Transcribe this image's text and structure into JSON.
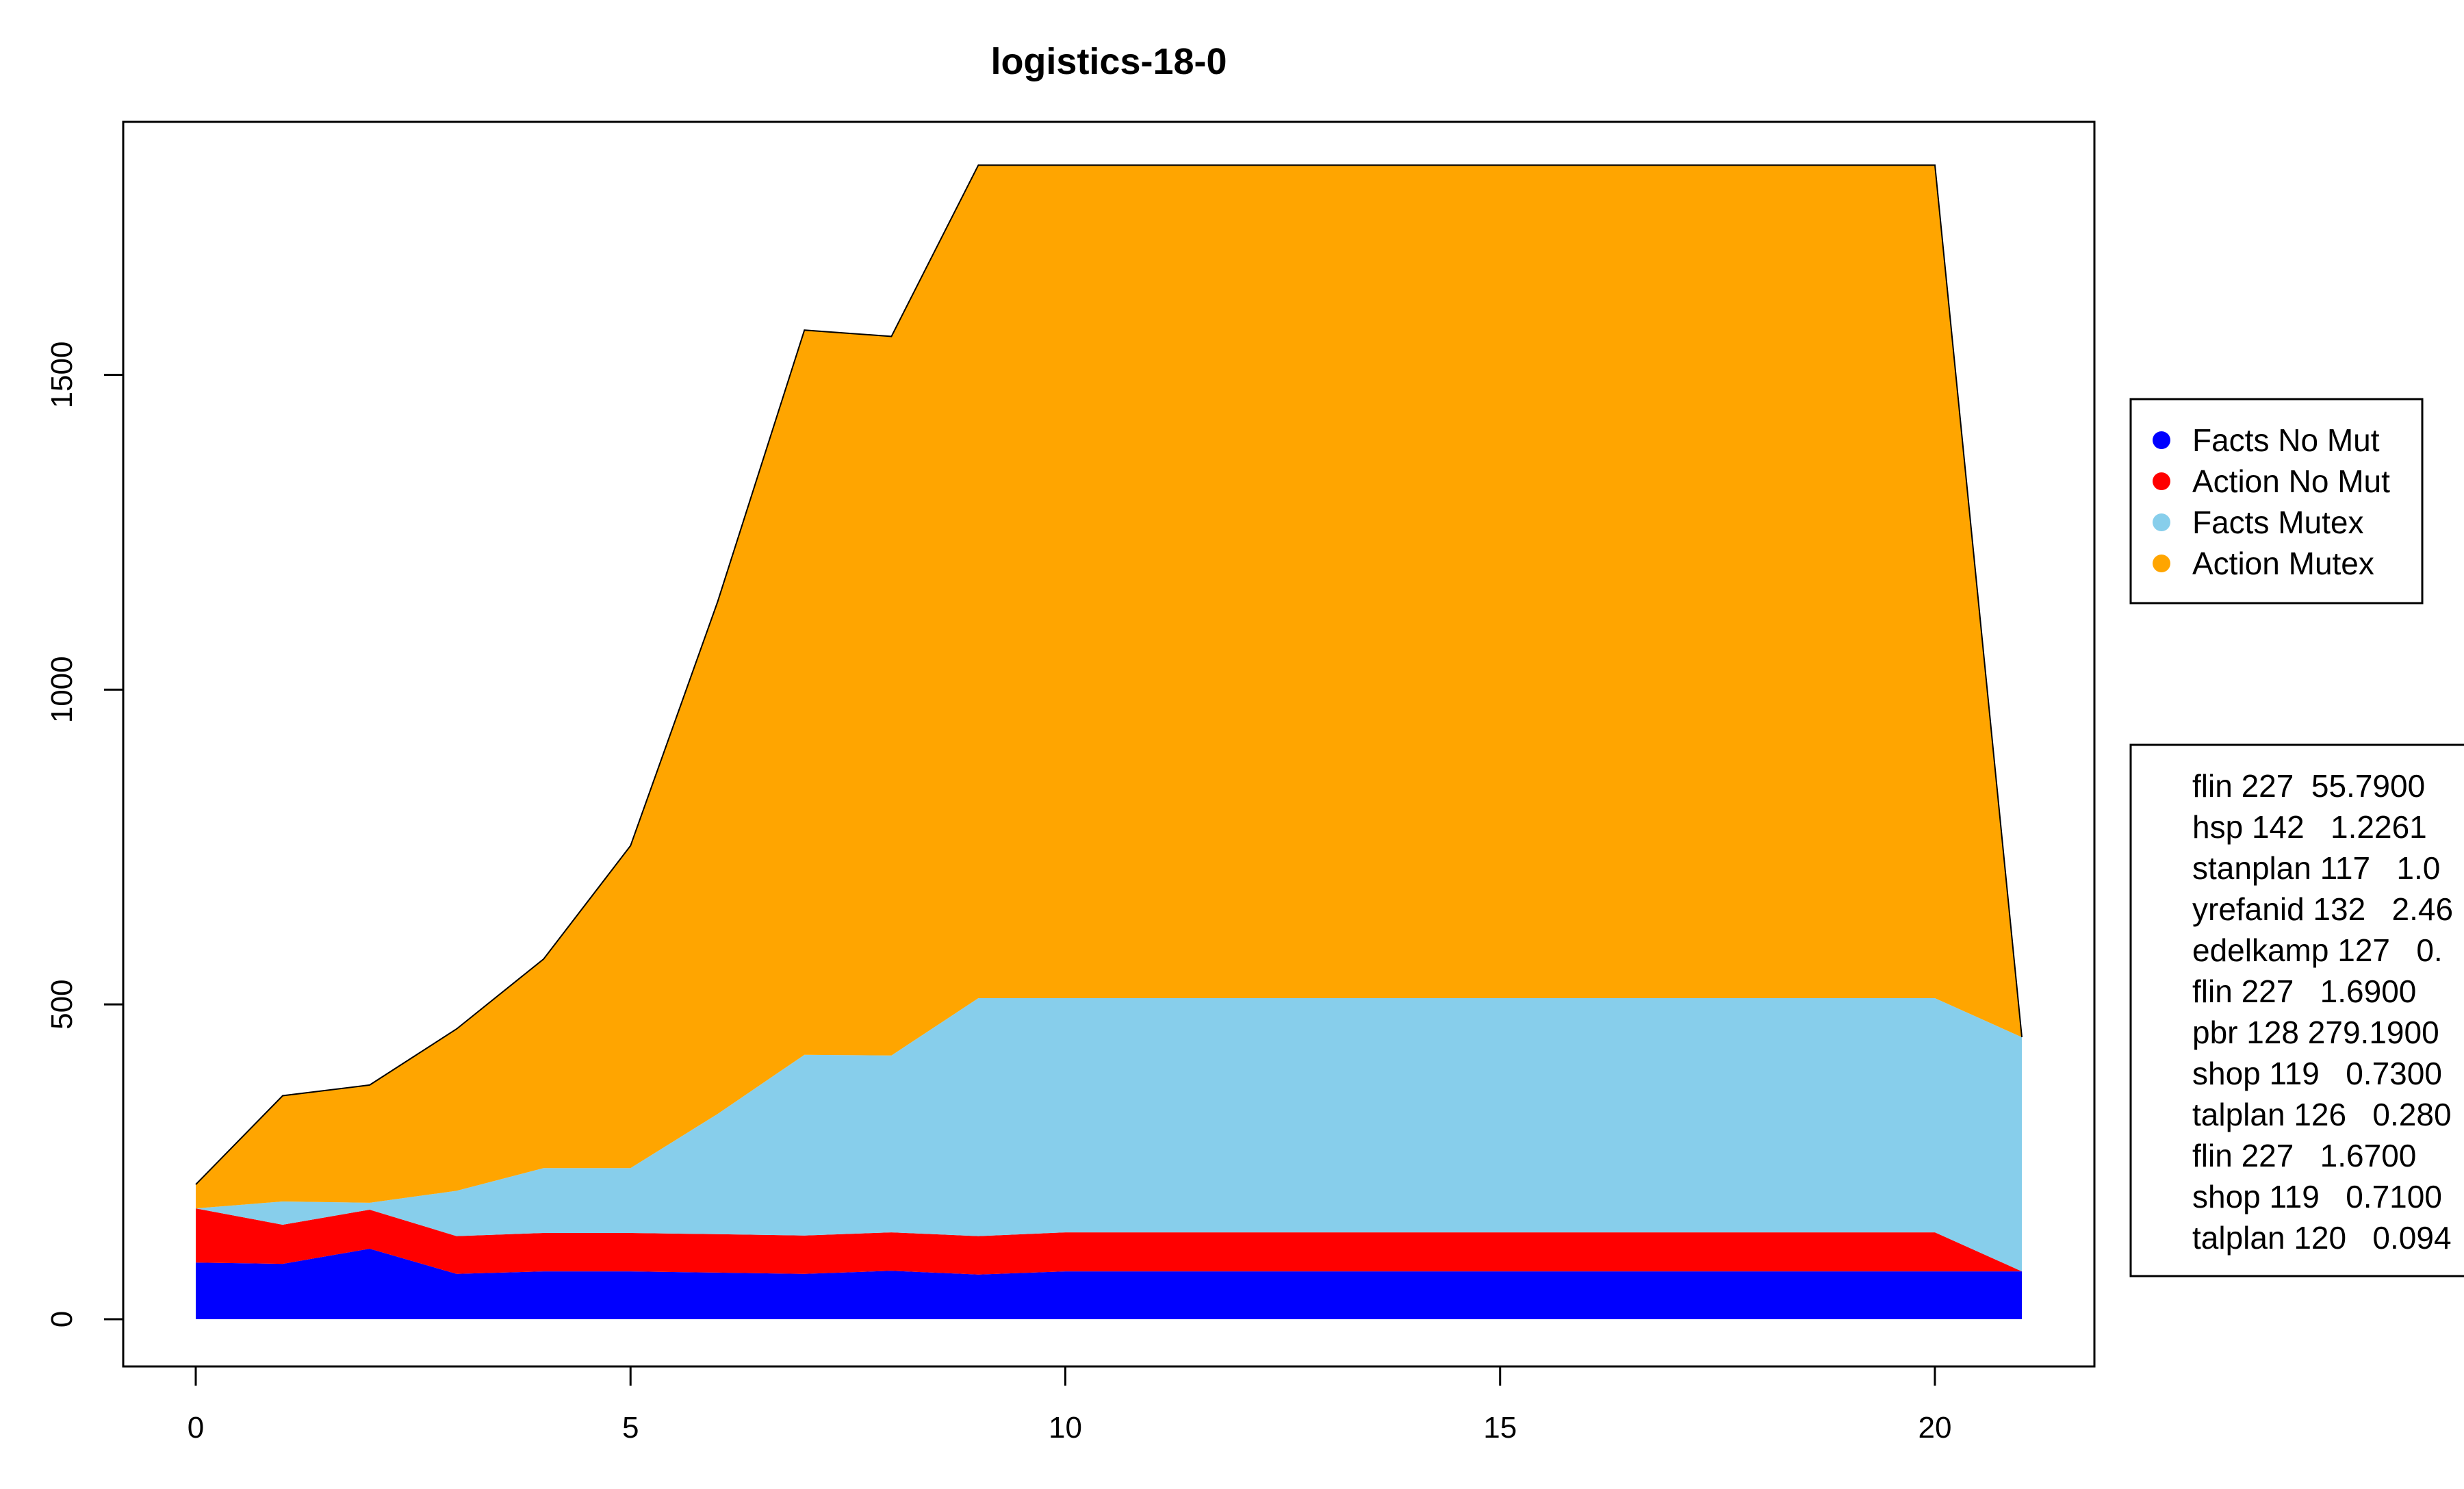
{
  "chart_data": {
    "type": "area",
    "stacked": true,
    "title": "logistics-18-0",
    "xlabel": "",
    "ylabel": "",
    "xlim": [
      0,
      21
    ],
    "ylim": [
      0,
      1830
    ],
    "x_ticks": [
      0,
      5,
      10,
      15,
      20
    ],
    "y_ticks": [
      0,
      500,
      1000,
      1500
    ],
    "x": [
      0,
      1,
      2,
      3,
      4,
      5,
      6,
      7,
      8,
      9,
      10,
      11,
      12,
      13,
      14,
      15,
      16,
      17,
      18,
      19,
      20,
      21
    ],
    "series": [
      {
        "name": "Facts No Mut",
        "color": "#0000FF",
        "values": [
          90,
          88,
          112,
          72,
          76,
          76,
          74,
          72,
          77,
          71,
          76,
          76,
          76,
          76,
          76,
          76,
          76,
          76,
          76,
          76,
          76,
          76
        ]
      },
      {
        "name": "Action No Mut",
        "color": "#FF0000",
        "values": [
          86,
          62,
          62,
          60,
          61,
          61,
          61,
          61,
          61,
          61,
          62,
          62,
          62,
          62,
          62,
          62,
          62,
          62,
          62,
          62,
          62,
          0
        ]
      },
      {
        "name": "Facts Mutex",
        "color": "#87CEEB",
        "values": [
          0,
          37,
          11,
          72,
          103,
          103,
          191,
          287,
          281,
          378,
          372,
          372,
          372,
          372,
          372,
          372,
          372,
          372,
          372,
          372,
          372,
          372
        ]
      },
      {
        "name": "Action Mutex",
        "color": "#FFA500",
        "values": [
          38,
          168,
          187,
          257,
          332,
          512,
          813,
          1151,
          1142,
          1323,
          1323,
          1323,
          1323,
          1323,
          1323,
          1323,
          1323,
          1323,
          1323,
          1323,
          1323,
          0
        ]
      }
    ],
    "legend": {
      "position": "right",
      "entries": [
        "Facts No Mut",
        "Action No Mut",
        "Facts Mutex",
        "Action Mutex"
      ]
    },
    "annotations": [
      "flin 227  55.7900",
      "hsp 142   1.2261",
      "stanplan 117   1.0",
      "yrefanid 132   2.46",
      "edelkamp 127   0.",
      "flin 227   1.6900",
      "pbr 128 279.1900",
      "shop 119   0.7300",
      "talplan 126   0.280",
      "flin 227   1.6700",
      "shop 119   0.7100",
      "talplan 120   0.094"
    ]
  }
}
